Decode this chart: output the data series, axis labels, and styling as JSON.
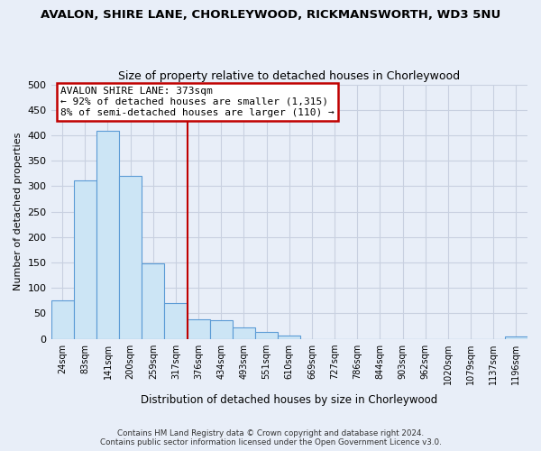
{
  "title": "AVALON, SHIRE LANE, CHORLEYWOOD, RICKMANSWORTH, WD3 5NU",
  "subtitle": "Size of property relative to detached houses in Chorleywood",
  "xlabel": "Distribution of detached houses by size in Chorleywood",
  "ylabel": "Number of detached properties",
  "bin_labels": [
    "24sqm",
    "83sqm",
    "141sqm",
    "200sqm",
    "259sqm",
    "317sqm",
    "376sqm",
    "434sqm",
    "493sqm",
    "551sqm",
    "610sqm",
    "669sqm",
    "727sqm",
    "786sqm",
    "844sqm",
    "903sqm",
    "962sqm",
    "1020sqm",
    "1079sqm",
    "1137sqm",
    "1196sqm"
  ],
  "bar_values": [
    75,
    311,
    408,
    320,
    148,
    70,
    38,
    37,
    22,
    14,
    6,
    0,
    0,
    0,
    0,
    0,
    0,
    0,
    0,
    0,
    5
  ],
  "bar_color": "#cce5f5",
  "bar_edge_color": "#5b9bd5",
  "vline_x": 6,
  "vline_color": "#c00000",
  "annotation_title": "AVALON SHIRE LANE: 373sqm",
  "annotation_line1": "← 92% of detached houses are smaller (1,315)",
  "annotation_line2": "8% of semi-detached houses are larger (110) →",
  "annotation_box_color": "#ffffff",
  "annotation_box_edge": "#c00000",
  "ylim": [
    0,
    500
  ],
  "yticks": [
    0,
    50,
    100,
    150,
    200,
    250,
    300,
    350,
    400,
    450,
    500
  ],
  "footer_line1": "Contains HM Land Registry data © Crown copyright and database right 2024.",
  "footer_line2": "Contains public sector information licensed under the Open Government Licence v3.0.",
  "bg_color": "#e8eef8",
  "plot_bg_color": "#e8eef8",
  "grid_color": "#c8d0e0"
}
